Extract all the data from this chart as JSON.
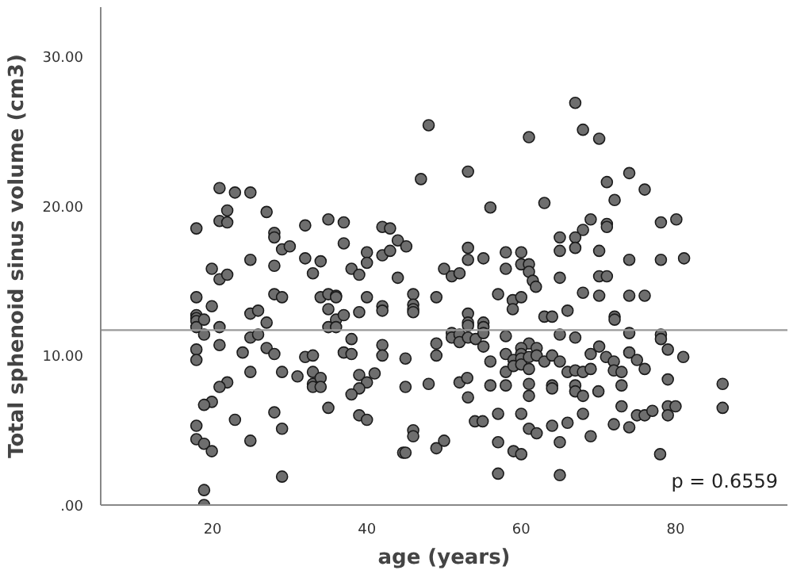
{
  "chart_data": {
    "type": "scatter",
    "xlabel": "age (years)",
    "ylabel": "Total sphenoid sinus volume (cm3)",
    "xlim": [
      5.5,
      94.5
    ],
    "ylim": [
      0,
      33.3
    ],
    "xticks": [
      20,
      40,
      60,
      80
    ],
    "yticks": [
      {
        "value": 0,
        "label": ".00"
      },
      {
        "value": 10,
        "label": "10.00"
      },
      {
        "value": 20,
        "label": "20.00"
      },
      {
        "value": 30,
        "label": "30.00"
      }
    ],
    "grid": false,
    "annotations": [
      "p = 0.6559"
    ],
    "series": [
      {
        "marker": "circle",
        "color": "#6e6e6e",
        "x": [
          17.9,
          20.9,
          22.9,
          24.9,
          21.9,
          20.9,
          21.9,
          27.0,
          28.0,
          28.0,
          29.0,
          30.0,
          32.0,
          35.0,
          37.0,
          37.0,
          32.0,
          34.0,
          24.9,
          28.0,
          19.9,
          20.9,
          21.9,
          33.0,
          38.0,
          39.0,
          40.0,
          40.0,
          42.0,
          43.0,
          42.0,
          43.0,
          44.0,
          44.0,
          48.0,
          67.0,
          68.0,
          70.1,
          61.0,
          47.0,
          53.1,
          74.0,
          71.1,
          76.0,
          72.1,
          63.0,
          56.0,
          69.0,
          71.1,
          71.1,
          78.1,
          80.1,
          68.0,
          67.0,
          65.0,
          67.0,
          65.0,
          70.1,
          45.1,
          53.1,
          53.1,
          55.1,
          58.0,
          60.0,
          58.0,
          60.0,
          61.0,
          61.0,
          50.0,
          51.0,
          52.0,
          74.0,
          78.1,
          81.1,
          70.1,
          71.1,
          65.0,
          61.5,
          17.9,
          19.9,
          17.9,
          17.9,
          17.9,
          17.9,
          18.9,
          18.9,
          20.9,
          20.9,
          17.9,
          17.9,
          24.9,
          25.9,
          28.0,
          29.0,
          27.0,
          24.9,
          25.9,
          27.0,
          28.0,
          23.9,
          24.9,
          29.0,
          31.0,
          32.0,
          33.0,
          33.0,
          33.0,
          33.0,
          34.0,
          34.0,
          35.0,
          34.0,
          35.0,
          36.0,
          36.0,
          35.0,
          36.0,
          37.0,
          35.0,
          36.0,
          39.0,
          40.0,
          42.0,
          42.0,
          38.0,
          37.0,
          38.0,
          42.0,
          42.0,
          39.0,
          41.0,
          40.0,
          39.0,
          38.0,
          39.0,
          40.0,
          21.9,
          20.9,
          19.9,
          18.9,
          22.9,
          28.0,
          29.0,
          17.9,
          17.9,
          18.9,
          19.9,
          24.9,
          29.0,
          18.9,
          18.9,
          44.7,
          46.0,
          49.0,
          46.0,
          46.0,
          46.0,
          53.1,
          53.1,
          53.1,
          55.1,
          55.1,
          57.0,
          58.9,
          60.0,
          58.9,
          61.9,
          63.0,
          64.0,
          66.0,
          68.0,
          70.1,
          74.0,
          76.0,
          72.1,
          72.1,
          51.0,
          51.0,
          52.0,
          52.0,
          53.1,
          54.1,
          55.1,
          55.1,
          58.0,
          61.0,
          65.0,
          67.0,
          70.1,
          74.0,
          78.1,
          78.1,
          49.0,
          49.0,
          45.0,
          45.0,
          56.0,
          58.0,
          58.0,
          59.0,
          59.0,
          60.0,
          60.0,
          60.0,
          60.0,
          61.0,
          61.0,
          62.0,
          62.0,
          63.0,
          64.0,
          65.0,
          66.0,
          67.0,
          68.0,
          69.0,
          69.0,
          71.0,
          72.0,
          72.0,
          73.0,
          74.0,
          75.0,
          76.0,
          79.0,
          81.0,
          79.0,
          86.1,
          86.1,
          48.0,
          52.0,
          53.0,
          53.1,
          56.0,
          58.0,
          61.0,
          61.0,
          64.0,
          64.0,
          67.0,
          67.0,
          68.0,
          70.0,
          73.0,
          73.0,
          75.0,
          76.0,
          77.0,
          79.0,
          80.0,
          79.0,
          72.0,
          74.0,
          54.0,
          55.0,
          57.0,
          60.0,
          61.0,
          62.0,
          64.0,
          66.0,
          68.0,
          69.0,
          46.0,
          46.0,
          49.0,
          50.0,
          45.0,
          57.0,
          59.0,
          60.0,
          65.0,
          78.0,
          57.0,
          65.0
        ],
        "values": [
          18.5,
          21.2,
          20.9,
          20.9,
          19.7,
          19.0,
          18.9,
          19.6,
          18.2,
          17.9,
          17.1,
          17.3,
          18.7,
          19.1,
          18.9,
          17.5,
          16.5,
          16.3,
          16.4,
          16.0,
          15.8,
          15.1,
          15.4,
          15.5,
          15.8,
          15.4,
          16.9,
          16.2,
          18.6,
          18.5,
          16.7,
          17.0,
          17.7,
          15.2,
          25.4,
          26.9,
          25.1,
          24.5,
          24.6,
          21.8,
          22.3,
          22.2,
          21.6,
          21.1,
          20.4,
          20.2,
          19.9,
          19.1,
          18.8,
          18.6,
          18.9,
          19.1,
          18.4,
          17.9,
          17.9,
          17.2,
          17.0,
          17.0,
          17.3,
          17.2,
          16.4,
          16.5,
          16.9,
          16.9,
          15.8,
          16.1,
          16.1,
          15.6,
          15.8,
          15.3,
          15.5,
          16.4,
          16.4,
          16.5,
          15.3,
          15.3,
          15.2,
          15.0,
          13.9,
          13.3,
          12.7,
          12.5,
          12.3,
          11.9,
          12.4,
          11.4,
          11.9,
          10.7,
          10.4,
          9.7,
          12.8,
          13.0,
          14.1,
          13.9,
          12.2,
          11.2,
          11.4,
          10.5,
          10.1,
          10.2,
          8.9,
          8.9,
          8.6,
          9.9,
          10.0,
          8.9,
          8.1,
          7.9,
          8.5,
          7.9,
          6.5,
          13.9,
          14.1,
          14.0,
          13.9,
          13.1,
          12.4,
          12.7,
          11.9,
          11.9,
          12.9,
          13.9,
          13.3,
          13.0,
          11.1,
          10.2,
          10.1,
          10.7,
          10.0,
          8.7,
          8.8,
          8.2,
          7.8,
          7.4,
          6.0,
          5.7,
          8.2,
          7.9,
          6.9,
          6.7,
          5.7,
          6.2,
          5.1,
          5.3,
          4.4,
          4.1,
          3.6,
          4.3,
          1.9,
          1.0,
          0.0,
          3.5,
          14.1,
          13.9,
          13.4,
          13.1,
          12.9,
          12.8,
          12.2,
          12.0,
          12.2,
          11.9,
          14.1,
          13.7,
          13.9,
          13.1,
          14.6,
          12.6,
          12.6,
          13.0,
          14.2,
          14.0,
          14.0,
          14.0,
          12.6,
          12.4,
          11.5,
          11.2,
          11.4,
          10.9,
          11.2,
          11.1,
          11.5,
          10.6,
          11.3,
          10.8,
          11.4,
          11.2,
          10.6,
          11.5,
          11.4,
          11.1,
          10.8,
          10.0,
          9.8,
          7.9,
          9.6,
          10.1,
          8.9,
          9.7,
          9.3,
          10.5,
          10.1,
          9.8,
          9.4,
          9.9,
          9.1,
          10.5,
          10.0,
          9.6,
          10.0,
          9.6,
          8.9,
          9.0,
          8.9,
          9.1,
          10.1,
          9.9,
          9.6,
          9.0,
          8.9,
          10.2,
          9.7,
          9.1,
          10.4,
          9.9,
          8.4,
          8.1,
          6.5,
          8.1,
          8.2,
          8.5,
          7.2,
          8.0,
          8.0,
          8.1,
          7.3,
          8.0,
          7.8,
          8.0,
          7.6,
          7.3,
          7.6,
          8.0,
          6.6,
          6.0,
          6.0,
          6.3,
          6.6,
          6.6,
          6.0,
          5.4,
          5.2,
          5.6,
          5.6,
          6.1,
          6.1,
          5.1,
          4.8,
          5.3,
          5.5,
          6.1,
          4.6,
          5.0,
          4.6,
          3.8,
          4.3,
          3.5,
          4.2,
          3.6,
          3.4,
          4.2,
          3.4,
          2.1,
          2.0
        ]
      },
      {
        "type": "line",
        "color": "#9a9a9a",
        "x": [
          5.5,
          94.5
        ],
        "values": [
          11.7,
          11.7
        ]
      }
    ]
  }
}
